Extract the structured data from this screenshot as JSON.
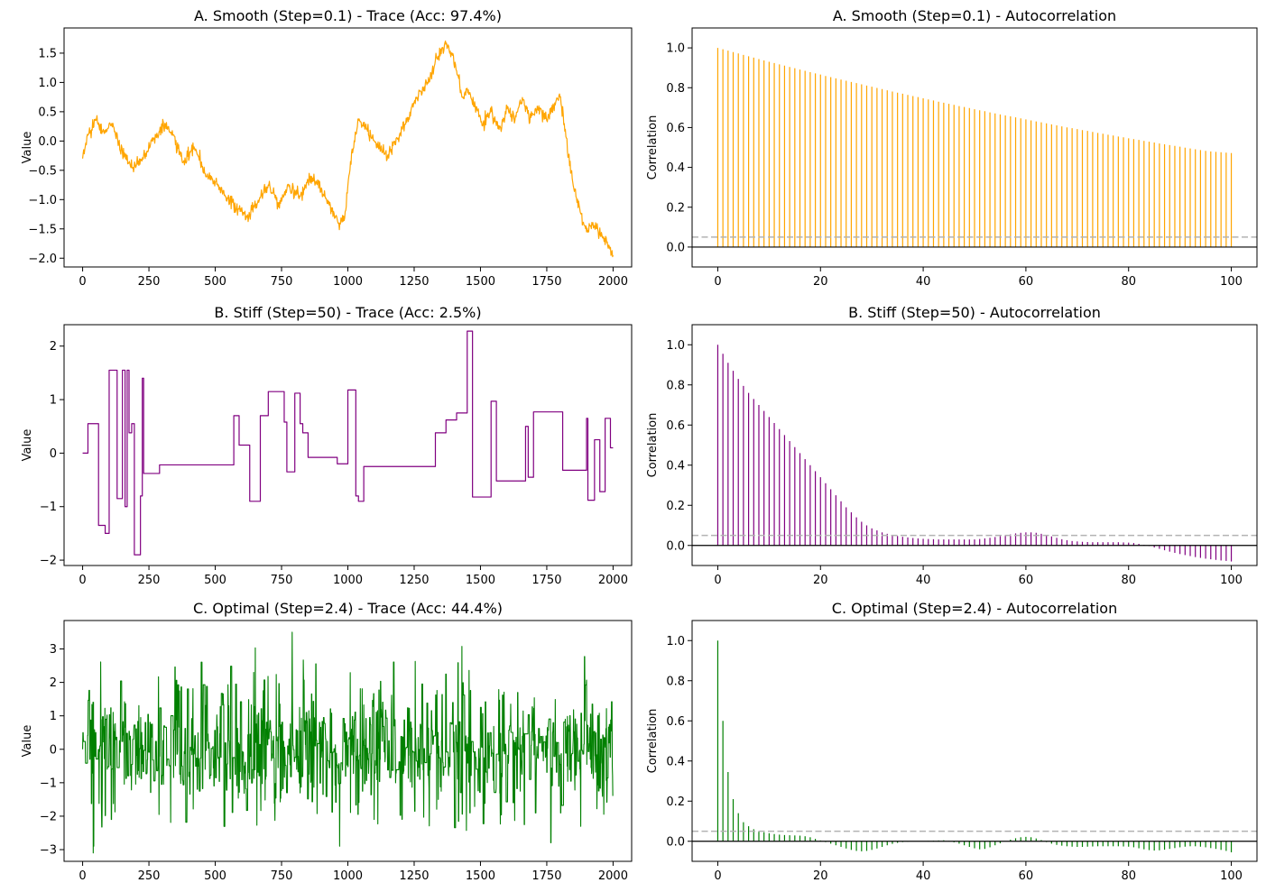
{
  "chart_data": [
    {
      "type": "line",
      "title": "A. Smooth (Step=0.1) - Trace (Acc: 97.4%)",
      "xlabel": "",
      "ylabel": "Value",
      "color": "#ffa500",
      "xlim": [
        -70,
        2070
      ],
      "ylim": [
        -2.15,
        1.93
      ],
      "xticks": [
        0,
        250,
        500,
        750,
        1000,
        1250,
        1500,
        1750,
        2000
      ],
      "yticks": [
        -2.0,
        -1.5,
        -1.0,
        -0.5,
        0.0,
        0.5,
        1.0,
        1.5
      ],
      "ytick_labels": [
        "−2.0",
        "−1.5",
        "−1.0",
        "−0.5",
        "0.0",
        "0.5",
        "1.0",
        "1.5"
      ],
      "x": [
        0,
        20,
        50,
        80,
        110,
        150,
        190,
        230,
        270,
        310,
        340,
        380,
        420,
        460,
        500,
        540,
        580,
        620,
        660,
        700,
        740,
        780,
        820,
        860,
        900,
        940,
        970,
        990,
        1010,
        1040,
        1070,
        1110,
        1150,
        1190,
        1230,
        1260,
        1300,
        1340,
        1370,
        1390,
        1410,
        1430,
        1450,
        1480,
        1510,
        1540,
        1570,
        1600,
        1630,
        1660,
        1690,
        1720,
        1750,
        1780,
        1800,
        1820,
        1840,
        1860,
        1880,
        1900,
        1930,
        1960,
        1980,
        2000
      ],
      "values": [
        -0.3,
        0.1,
        0.35,
        0.15,
        0.3,
        -0.2,
        -0.45,
        -0.25,
        0.05,
        0.3,
        0.1,
        -0.35,
        -0.1,
        -0.55,
        -0.7,
        -0.95,
        -1.15,
        -1.3,
        -1.05,
        -0.75,
        -1.05,
        -0.75,
        -0.95,
        -0.6,
        -0.8,
        -1.2,
        -1.4,
        -1.2,
        -0.35,
        0.35,
        0.2,
        -0.05,
        -0.25,
        0.05,
        0.4,
        0.75,
        1.0,
        1.45,
        1.65,
        1.5,
        1.2,
        0.75,
        0.9,
        0.6,
        0.3,
        0.5,
        0.2,
        0.55,
        0.35,
        0.7,
        0.4,
        0.6,
        0.35,
        0.65,
        0.75,
        0.2,
        -0.55,
        -0.95,
        -1.25,
        -1.55,
        -1.45,
        -1.65,
        -1.8,
        -1.95
      ]
    },
    {
      "type": "bar",
      "title": "A. Smooth (Step=0.1) - Autocorrelation",
      "xlabel": "",
      "ylabel": "Correlation",
      "color": "#ffa500",
      "xlim": [
        -5,
        105
      ],
      "ylim": [
        -0.1,
        1.1
      ],
      "xticks": [
        0,
        20,
        40,
        60,
        80,
        100
      ],
      "yticks": [
        0.0,
        0.2,
        0.4,
        0.6,
        0.8,
        1.0
      ],
      "ytick_labels": [
        "0.0",
        "0.2",
        "0.4",
        "0.6",
        "0.8",
        "1.0"
      ],
      "threshold": 0.05,
      "lags": [
        0,
        100
      ],
      "values": [
        1.0,
        0.993,
        0.986,
        0.979,
        0.972,
        0.965,
        0.958,
        0.951,
        0.944,
        0.937,
        0.93,
        0.924,
        0.917,
        0.911,
        0.904,
        0.898,
        0.891,
        0.885,
        0.878,
        0.872,
        0.866,
        0.859,
        0.853,
        0.847,
        0.841,
        0.835,
        0.829,
        0.823,
        0.817,
        0.811,
        0.805,
        0.799,
        0.793,
        0.787,
        0.781,
        0.775,
        0.77,
        0.764,
        0.758,
        0.753,
        0.747,
        0.741,
        0.736,
        0.73,
        0.725,
        0.719,
        0.714,
        0.708,
        0.703,
        0.698,
        0.692,
        0.687,
        0.682,
        0.676,
        0.671,
        0.666,
        0.661,
        0.656,
        0.651,
        0.646,
        0.641,
        0.636,
        0.631,
        0.626,
        0.621,
        0.616,
        0.611,
        0.606,
        0.601,
        0.597,
        0.592,
        0.587,
        0.583,
        0.578,
        0.573,
        0.569,
        0.564,
        0.56,
        0.555,
        0.551,
        0.546,
        0.542,
        0.538,
        0.533,
        0.529,
        0.525,
        0.52,
        0.516,
        0.512,
        0.508,
        0.504,
        0.499,
        0.495,
        0.491,
        0.487,
        0.483,
        0.48,
        0.478,
        0.476,
        0.474,
        0.472
      ]
    },
    {
      "type": "line",
      "title": "B. Stiff (Step=50) - Trace (Acc: 2.5%)",
      "xlabel": "",
      "ylabel": "Value",
      "color": "#800080",
      "steps": true,
      "xlim": [
        -70,
        2070
      ],
      "ylim": [
        -2.1,
        2.4
      ],
      "xticks": [
        0,
        250,
        500,
        750,
        1000,
        1250,
        1500,
        1750,
        2000
      ],
      "yticks": [
        -2,
        -1,
        0,
        1,
        2
      ],
      "ytick_labels": [
        "−2",
        "−1",
        "0",
        "1",
        "2"
      ],
      "x": [
        0,
        20,
        60,
        85,
        100,
        130,
        150,
        160,
        168,
        175,
        185,
        195,
        218,
        225,
        230,
        290,
        570,
        590,
        630,
        670,
        700,
        760,
        770,
        800,
        820,
        830,
        850,
        910,
        960,
        1000,
        1030,
        1040,
        1060,
        1090,
        1330,
        1370,
        1410,
        1450,
        1470,
        1520,
        1540,
        1560,
        1670,
        1680,
        1700,
        1800,
        1810,
        1900,
        1905,
        1920,
        1930,
        1950,
        1970,
        1990,
        2000
      ],
      "values": [
        0.0,
        0.55,
        -1.35,
        -1.5,
        1.55,
        -0.85,
        1.55,
        -1.0,
        1.55,
        0.38,
        0.55,
        -1.9,
        -0.8,
        1.4,
        -0.38,
        -0.22,
        0.7,
        0.15,
        -0.9,
        0.7,
        1.15,
        0.58,
        -0.35,
        1.12,
        0.55,
        0.38,
        -0.08,
        -0.08,
        -0.2,
        1.18,
        -0.8,
        -0.9,
        -0.25,
        -0.25,
        0.38,
        0.62,
        0.75,
        2.28,
        -0.82,
        -0.82,
        0.97,
        -0.52,
        0.5,
        -0.45,
        0.77,
        0.77,
        -0.32,
        0.65,
        -0.88,
        -0.88,
        0.25,
        -0.72,
        0.65,
        0.1,
        0.1
      ]
    },
    {
      "type": "bar",
      "title": "B. Stiff (Step=50) - Autocorrelation",
      "xlabel": "",
      "ylabel": "Correlation",
      "color": "#800080",
      "xlim": [
        -5,
        105
      ],
      "ylim": [
        -0.1,
        1.1
      ],
      "xticks": [
        0,
        20,
        40,
        60,
        80,
        100
      ],
      "yticks": [
        0.0,
        0.2,
        0.4,
        0.6,
        0.8,
        1.0
      ],
      "ytick_labels": [
        "0.0",
        "0.2",
        "0.4",
        "0.6",
        "0.8",
        "1.0"
      ],
      "threshold": 0.05,
      "lags": [
        0,
        100
      ],
      "values": [
        1.0,
        0.955,
        0.91,
        0.87,
        0.83,
        0.795,
        0.76,
        0.73,
        0.7,
        0.67,
        0.64,
        0.61,
        0.58,
        0.55,
        0.52,
        0.49,
        0.46,
        0.43,
        0.4,
        0.37,
        0.34,
        0.31,
        0.28,
        0.25,
        0.22,
        0.19,
        0.165,
        0.14,
        0.118,
        0.1,
        0.085,
        0.075,
        0.065,
        0.058,
        0.052,
        0.047,
        0.043,
        0.04,
        0.037,
        0.035,
        0.033,
        0.032,
        0.031,
        0.03,
        0.03,
        0.03,
        0.03,
        0.03,
        0.03,
        0.03,
        0.03,
        0.032,
        0.035,
        0.038,
        0.042,
        0.046,
        0.05,
        0.055,
        0.06,
        0.063,
        0.065,
        0.065,
        0.063,
        0.058,
        0.052,
        0.045,
        0.038,
        0.031,
        0.026,
        0.022,
        0.02,
        0.018,
        0.017,
        0.016,
        0.016,
        0.016,
        0.016,
        0.016,
        0.016,
        0.015,
        0.014,
        0.012,
        0.008,
        0.003,
        -0.003,
        -0.01,
        -0.017,
        -0.024,
        -0.031,
        -0.037,
        -0.043,
        -0.048,
        -0.053,
        -0.058,
        -0.062,
        -0.066,
        -0.069,
        -0.072,
        -0.075,
        -0.077,
        -0.08
      ]
    },
    {
      "type": "line",
      "title": "C. Optimal (Step=2.4) - Trace (Acc: 44.4%)",
      "xlabel": "",
      "ylabel": "Value",
      "color": "#008000",
      "noisy": true,
      "xlim": [
        -70,
        2070
      ],
      "ylim": [
        -3.35,
        3.85
      ],
      "xticks": [
        0,
        250,
        500,
        750,
        1000,
        1250,
        1500,
        1750,
        2000
      ],
      "yticks": [
        -3,
        -2,
        -1,
        0,
        1,
        2,
        3
      ],
      "ytick_labels": [
        "−3",
        "−2",
        "−1",
        "0",
        "1",
        "2",
        "3"
      ],
      "min_point": [
        40,
        -3.1
      ],
      "max_point": [
        790,
        3.5
      ],
      "n_points": 2000
    },
    {
      "type": "bar",
      "title": "C. Optimal (Step=2.4) - Autocorrelation",
      "xlabel": "",
      "ylabel": "Correlation",
      "color": "#008000",
      "xlim": [
        -5,
        105
      ],
      "ylim": [
        -0.1,
        1.1
      ],
      "xticks": [
        0,
        20,
        40,
        60,
        80,
        100
      ],
      "yticks": [
        0.0,
        0.2,
        0.4,
        0.6,
        0.8,
        1.0
      ],
      "ytick_labels": [
        "0.0",
        "0.2",
        "0.4",
        "0.6",
        "0.8",
        "1.0"
      ],
      "threshold": 0.05,
      "lags": [
        0,
        100
      ],
      "values": [
        1.0,
        0.6,
        0.345,
        0.21,
        0.14,
        0.095,
        0.075,
        0.06,
        0.05,
        0.045,
        0.04,
        0.036,
        0.033,
        0.031,
        0.03,
        0.029,
        0.028,
        0.025,
        0.02,
        0.012,
        0.004,
        -0.004,
        -0.012,
        -0.02,
        -0.028,
        -0.036,
        -0.043,
        -0.048,
        -0.05,
        -0.048,
        -0.043,
        -0.036,
        -0.028,
        -0.02,
        -0.013,
        -0.008,
        -0.004,
        -0.002,
        0.0,
        0.001,
        0.001,
        0.002,
        0.003,
        0.004,
        0.005,
        0.002,
        -0.005,
        -0.012,
        -0.02,
        -0.028,
        -0.035,
        -0.04,
        -0.038,
        -0.03,
        -0.02,
        -0.01,
        0.0,
        0.008,
        0.015,
        0.02,
        0.022,
        0.02,
        0.014,
        0.006,
        -0.004,
        -0.012,
        -0.018,
        -0.022,
        -0.025,
        -0.027,
        -0.028,
        -0.028,
        -0.027,
        -0.026,
        -0.025,
        -0.025,
        -0.025,
        -0.025,
        -0.025,
        -0.026,
        -0.027,
        -0.03,
        -0.035,
        -0.04,
        -0.044,
        -0.046,
        -0.045,
        -0.042,
        -0.038,
        -0.034,
        -0.03,
        -0.027,
        -0.025,
        -0.025,
        -0.027,
        -0.03,
        -0.034,
        -0.038,
        -0.043,
        -0.048,
        -0.055
      ]
    }
  ]
}
